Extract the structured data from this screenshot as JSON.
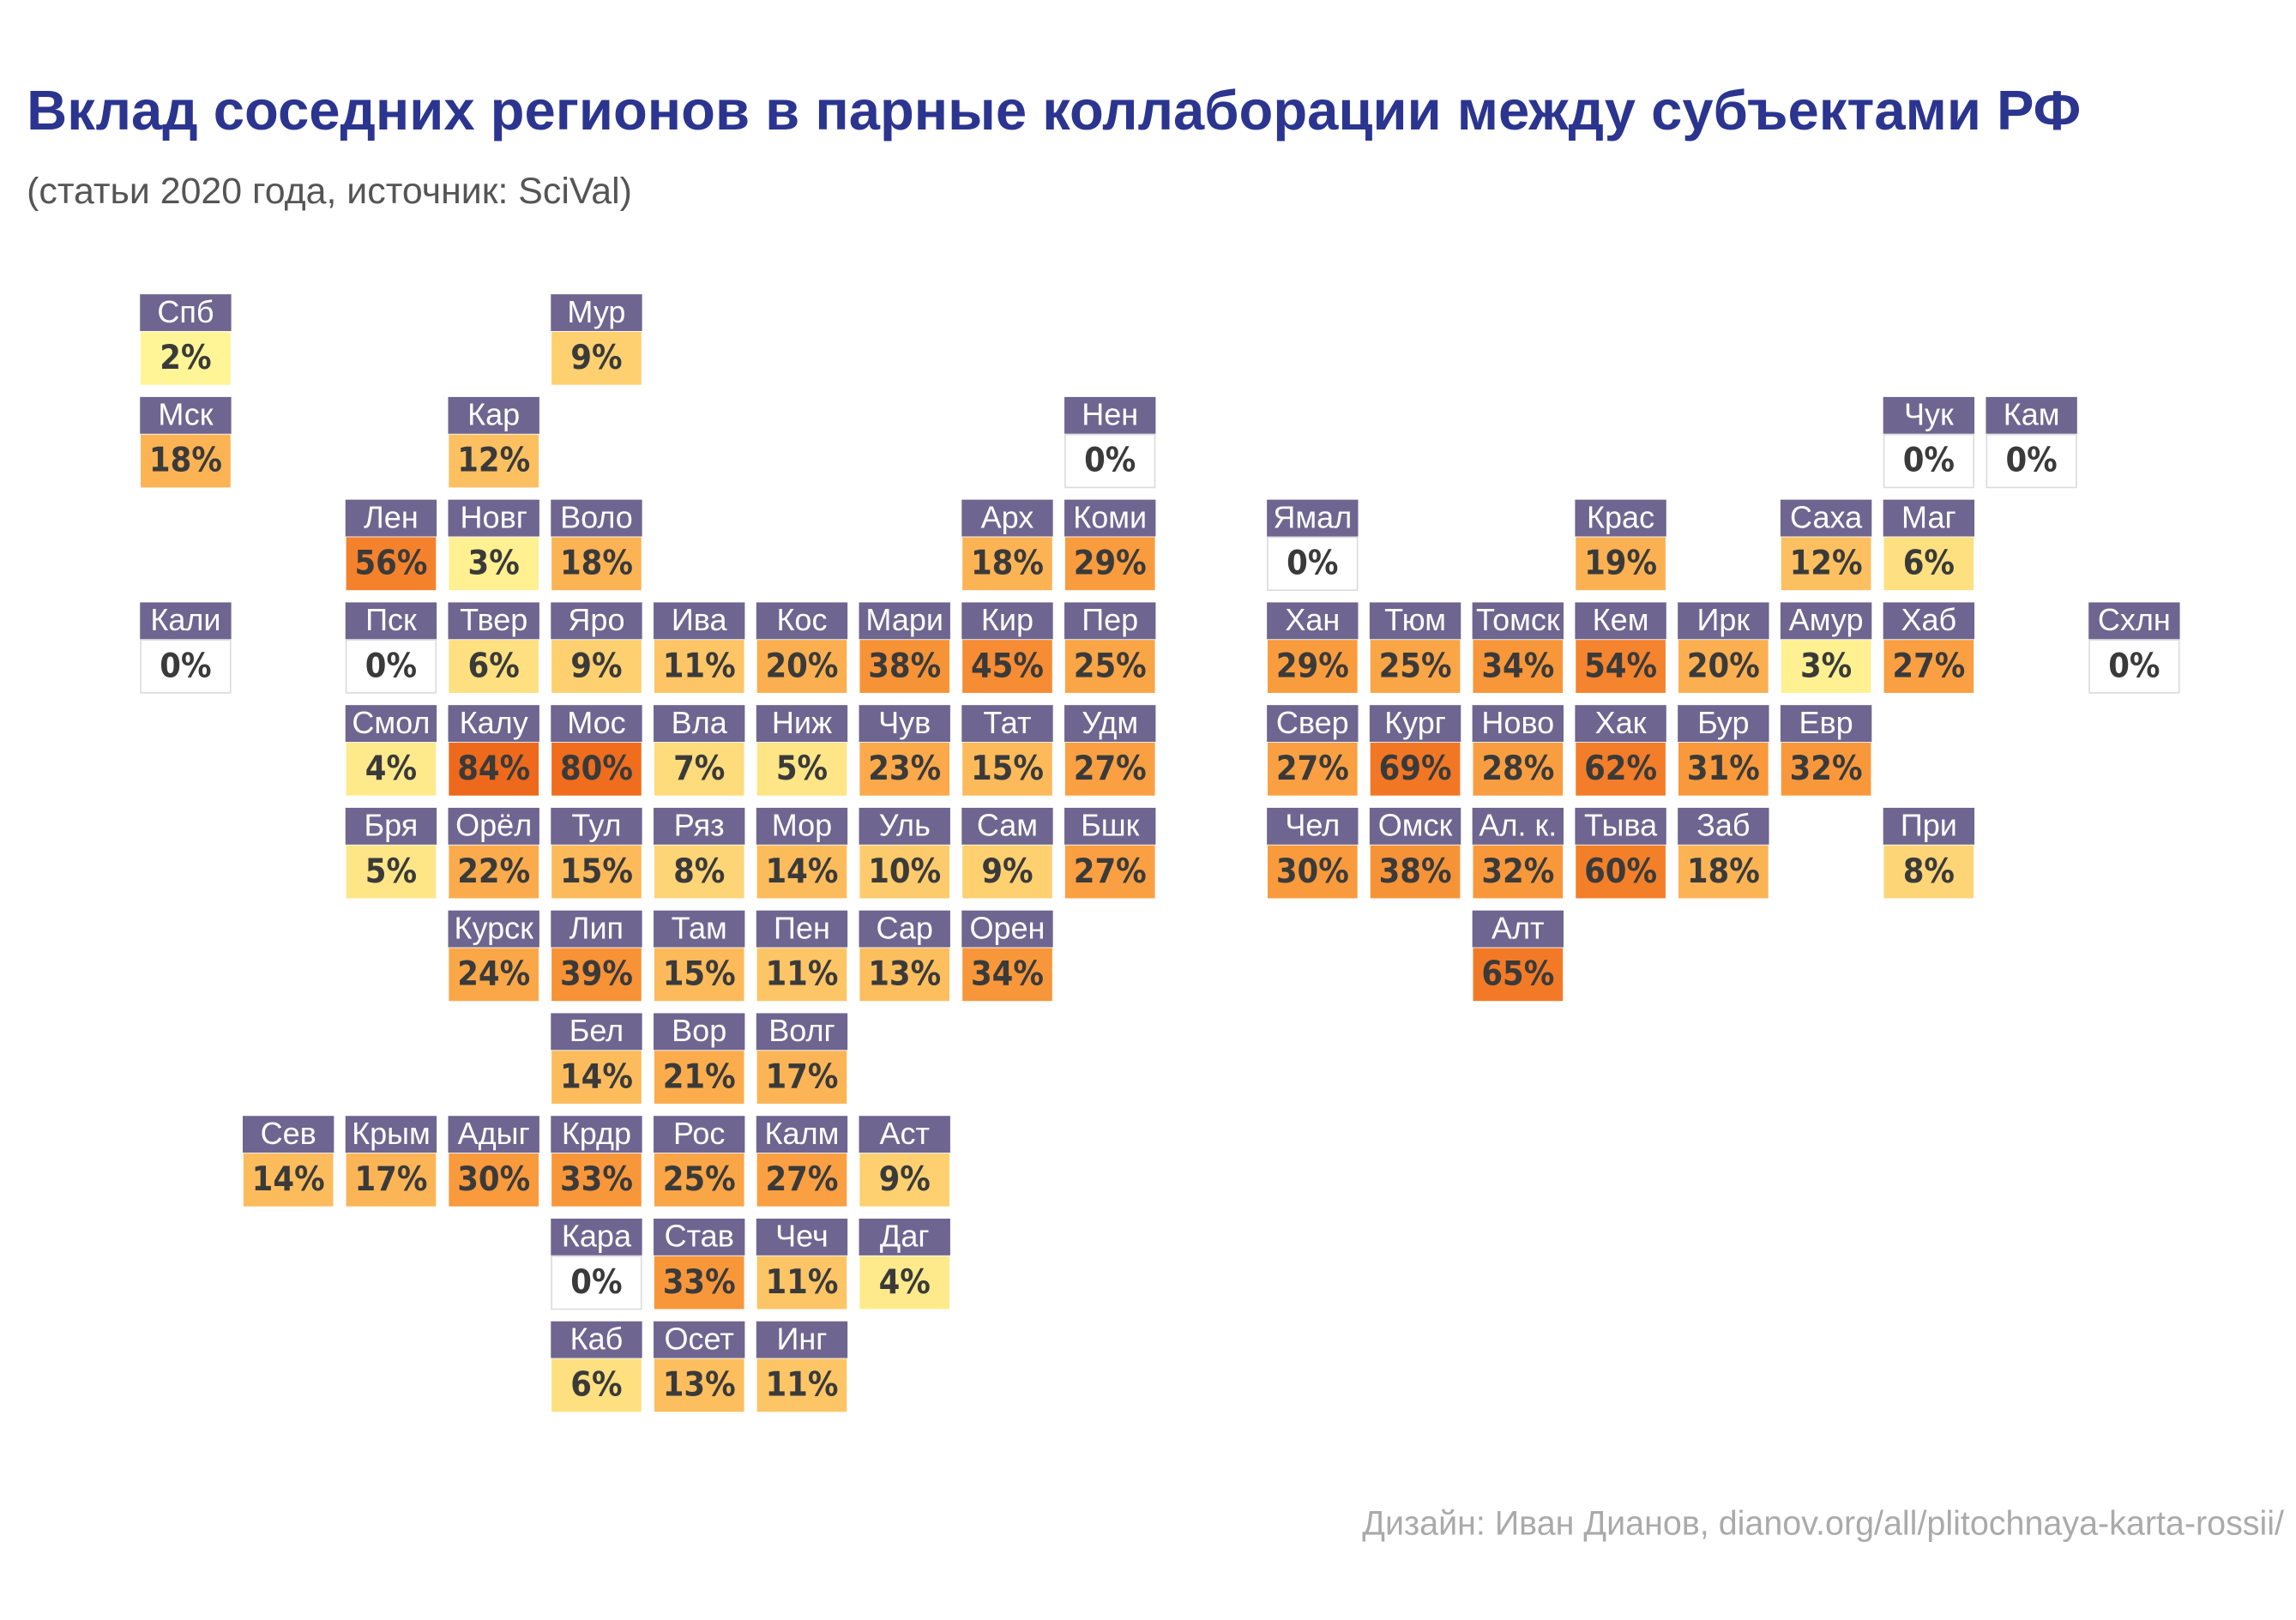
{
  "header": {
    "title": "Вклад соседних регионов в парные коллаборации между субъектами РФ",
    "subtitle": "(статьи 2020 года, источник: SciVal)"
  },
  "footer": "Дизайн: Иван Дианов, dianov.org/all/plitochnaya-karta-rossii/",
  "tiles": [
    {
      "name": "Спб",
      "value": 2,
      "value_label": "2%"
    },
    {
      "name": "Мур",
      "value": 9,
      "value_label": "9%"
    },
    {
      "name": "Мск",
      "value": 18,
      "value_label": "18%"
    },
    {
      "name": "Кар",
      "value": 12,
      "value_label": "12%"
    },
    {
      "name": "Нен",
      "value": 0,
      "value_label": "0%"
    },
    {
      "name": "Чук",
      "value": 0,
      "value_label": "0%"
    },
    {
      "name": "Кам",
      "value": 0,
      "value_label": "0%"
    },
    {
      "name": "Лен",
      "value": 56,
      "value_label": "56%"
    },
    {
      "name": "Новг",
      "value": 3,
      "value_label": "3%"
    },
    {
      "name": "Воло",
      "value": 18,
      "value_label": "18%"
    },
    {
      "name": "Арх",
      "value": 18,
      "value_label": "18%"
    },
    {
      "name": "Коми",
      "value": 29,
      "value_label": "29%"
    },
    {
      "name": "Ямал",
      "value": 0,
      "value_label": "0%"
    },
    {
      "name": "Крас",
      "value": 19,
      "value_label": "19%"
    },
    {
      "name": "Саха",
      "value": 12,
      "value_label": "12%"
    },
    {
      "name": "Маг",
      "value": 6,
      "value_label": "6%"
    },
    {
      "name": "Кали",
      "value": 0,
      "value_label": "0%"
    },
    {
      "name": "Пск",
      "value": 0,
      "value_label": "0%"
    },
    {
      "name": "Твер",
      "value": 6,
      "value_label": "6%"
    },
    {
      "name": "Яро",
      "value": 9,
      "value_label": "9%"
    },
    {
      "name": "Ива",
      "value": 11,
      "value_label": "11%"
    },
    {
      "name": "Кос",
      "value": 20,
      "value_label": "20%"
    },
    {
      "name": "Мари",
      "value": 38,
      "value_label": "38%"
    },
    {
      "name": "Кир",
      "value": 45,
      "value_label": "45%"
    },
    {
      "name": "Пер",
      "value": 25,
      "value_label": "25%"
    },
    {
      "name": "Хан",
      "value": 29,
      "value_label": "29%"
    },
    {
      "name": "Тюм",
      "value": 25,
      "value_label": "25%"
    },
    {
      "name": "Томск",
      "value": 34,
      "value_label": "34%"
    },
    {
      "name": "Кем",
      "value": 54,
      "value_label": "54%"
    },
    {
      "name": "Ирк",
      "value": 20,
      "value_label": "20%"
    },
    {
      "name": "Амур",
      "value": 3,
      "value_label": "3%"
    },
    {
      "name": "Хаб",
      "value": 27,
      "value_label": "27%"
    },
    {
      "name": "Схлн",
      "value": 0,
      "value_label": "0%"
    },
    {
      "name": "Смол",
      "value": 4,
      "value_label": "4%"
    },
    {
      "name": "Калу",
      "value": 84,
      "value_label": "84%"
    },
    {
      "name": "Мос",
      "value": 80,
      "value_label": "80%"
    },
    {
      "name": "Вла",
      "value": 7,
      "value_label": "7%"
    },
    {
      "name": "Ниж",
      "value": 5,
      "value_label": "5%"
    },
    {
      "name": "Чув",
      "value": 23,
      "value_label": "23%"
    },
    {
      "name": "Тат",
      "value": 15,
      "value_label": "15%"
    },
    {
      "name": "Удм",
      "value": 27,
      "value_label": "27%"
    },
    {
      "name": "Свер",
      "value": 27,
      "value_label": "27%"
    },
    {
      "name": "Кург",
      "value": 69,
      "value_label": "69%"
    },
    {
      "name": "Ново",
      "value": 28,
      "value_label": "28%"
    },
    {
      "name": "Хак",
      "value": 62,
      "value_label": "62%"
    },
    {
      "name": "Бур",
      "value": 31,
      "value_label": "31%"
    },
    {
      "name": "Евр",
      "value": 32,
      "value_label": "32%"
    },
    {
      "name": "Бря",
      "value": 5,
      "value_label": "5%"
    },
    {
      "name": "Орёл",
      "value": 22,
      "value_label": "22%"
    },
    {
      "name": "Тул",
      "value": 15,
      "value_label": "15%"
    },
    {
      "name": "Ряз",
      "value": 8,
      "value_label": "8%"
    },
    {
      "name": "Мор",
      "value": 14,
      "value_label": "14%"
    },
    {
      "name": "Уль",
      "value": 10,
      "value_label": "10%"
    },
    {
      "name": "Сам",
      "value": 9,
      "value_label": "9%"
    },
    {
      "name": "Бшк",
      "value": 27,
      "value_label": "27%"
    },
    {
      "name": "Чел",
      "value": 30,
      "value_label": "30%"
    },
    {
      "name": "Омск",
      "value": 38,
      "value_label": "38%"
    },
    {
      "name": "Ал. к.",
      "value": 32,
      "value_label": "32%"
    },
    {
      "name": "Тыва",
      "value": 60,
      "value_label": "60%"
    },
    {
      "name": "Заб",
      "value": 18,
      "value_label": "18%"
    },
    {
      "name": "При",
      "value": 8,
      "value_label": "8%"
    },
    {
      "name": "Курск",
      "value": 24,
      "value_label": "24%"
    },
    {
      "name": "Лип",
      "value": 39,
      "value_label": "39%"
    },
    {
      "name": "Там",
      "value": 15,
      "value_label": "15%"
    },
    {
      "name": "Пен",
      "value": 11,
      "value_label": "11%"
    },
    {
      "name": "Сар",
      "value": 13,
      "value_label": "13%"
    },
    {
      "name": "Орен",
      "value": 34,
      "value_label": "34%"
    },
    {
      "name": "Алт",
      "value": 65,
      "value_label": "65%"
    },
    {
      "name": "Бел",
      "value": 14,
      "value_label": "14%"
    },
    {
      "name": "Вор",
      "value": 21,
      "value_label": "21%"
    },
    {
      "name": "Волг",
      "value": 17,
      "value_label": "17%"
    },
    {
      "name": "Сев",
      "value": 14,
      "value_label": "14%"
    },
    {
      "name": "Крым",
      "value": 17,
      "value_label": "17%"
    },
    {
      "name": "Адыг",
      "value": 30,
      "value_label": "30%"
    },
    {
      "name": "Крдр",
      "value": 33,
      "value_label": "33%"
    },
    {
      "name": "Рос",
      "value": 25,
      "value_label": "25%"
    },
    {
      "name": "Калм",
      "value": 27,
      "value_label": "27%"
    },
    {
      "name": "Аст",
      "value": 9,
      "value_label": "9%"
    },
    {
      "name": "Кара",
      "value": 0,
      "value_label": "0%"
    },
    {
      "name": "Став",
      "value": 33,
      "value_label": "33%"
    },
    {
      "name": "Чеч",
      "value": 11,
      "value_label": "11%"
    },
    {
      "name": "Даг",
      "value": 4,
      "value_label": "4%"
    },
    {
      "name": "Каб",
      "value": 6,
      "value_label": "6%"
    },
    {
      "name": "Осет",
      "value": 13,
      "value_label": "13%"
    },
    {
      "name": "Инг",
      "value": 11,
      "value_label": "11%"
    }
  ]
}
